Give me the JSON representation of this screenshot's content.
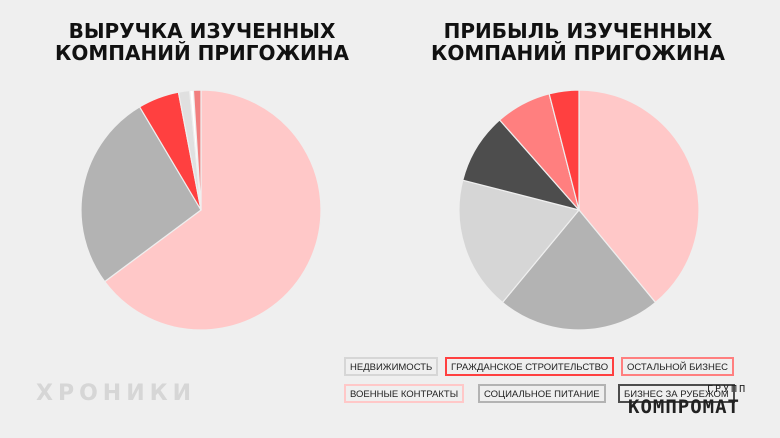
{
  "chart_data": [
    {
      "type": "pie",
      "title_line1": "ВЫРУЧКА ИЗУЧЕННЫХ",
      "title_line2": "КОМПАНИЙ ПРИГОЖИНА",
      "slices": [
        {
          "key": "military",
          "value": 64.5,
          "color": "#ffc8c8"
        },
        {
          "key": "catering",
          "value": 26.5,
          "color": "#b3b3b3"
        },
        {
          "key": "other",
          "value": 5.5,
          "color": "#ff4040"
        },
        {
          "key": "realestate",
          "value": 1.5,
          "color": "#e0e0e0"
        },
        {
          "key": "abroad",
          "value": 0.5,
          "color": "#ffffff"
        },
        {
          "key": "construction",
          "value": 1.0,
          "color": "#f27f7f"
        }
      ]
    },
    {
      "type": "pie",
      "title_line1": "ПРИБЫЛЬ ИЗУЧЕННЫХ",
      "title_line2": "КОМПАНИЙ ПРИГОЖИНА",
      "slices": [
        {
          "key": "military",
          "value": 39,
          "color": "#ffc8c8"
        },
        {
          "key": "catering",
          "value": 22,
          "color": "#b3b3b3"
        },
        {
          "key": "realestate",
          "value": 18,
          "color": "#d6d6d6"
        },
        {
          "key": "abroad",
          "value": 9.5,
          "color": "#4d4d4d"
        },
        {
          "key": "other",
          "value": 7.5,
          "color": "#ff7f7f"
        },
        {
          "key": "construction",
          "value": 4,
          "color": "#ff4040"
        }
      ]
    }
  ],
  "legend": [
    {
      "label": "НЕДВИЖИМОСТЬ",
      "color": "#d6d6d6"
    },
    {
      "label": "ГРАЖДАНСКОЕ СТРОИТЕЛЬСТВО",
      "color": "#ff4040"
    },
    {
      "label": "ОСТАЛЬНОЙ БИЗНЕС",
      "color": "#ff7f7f"
    },
    {
      "label": "ВОЕННЫЕ КОНТРАКТЫ",
      "color": "#ffc8c8"
    },
    {
      "label": "СОЦИАЛЬНОЕ ПИТАНИЕ",
      "color": "#b3b3b3"
    },
    {
      "label": "БИЗНЕС ЗА РУБЕЖОМ",
      "color": "#4d4d4d"
    }
  ],
  "watermark": "ХРОНИКИ",
  "logo": {
    "top": "ГРУПП",
    "main": "КОМПРОМАТ"
  }
}
